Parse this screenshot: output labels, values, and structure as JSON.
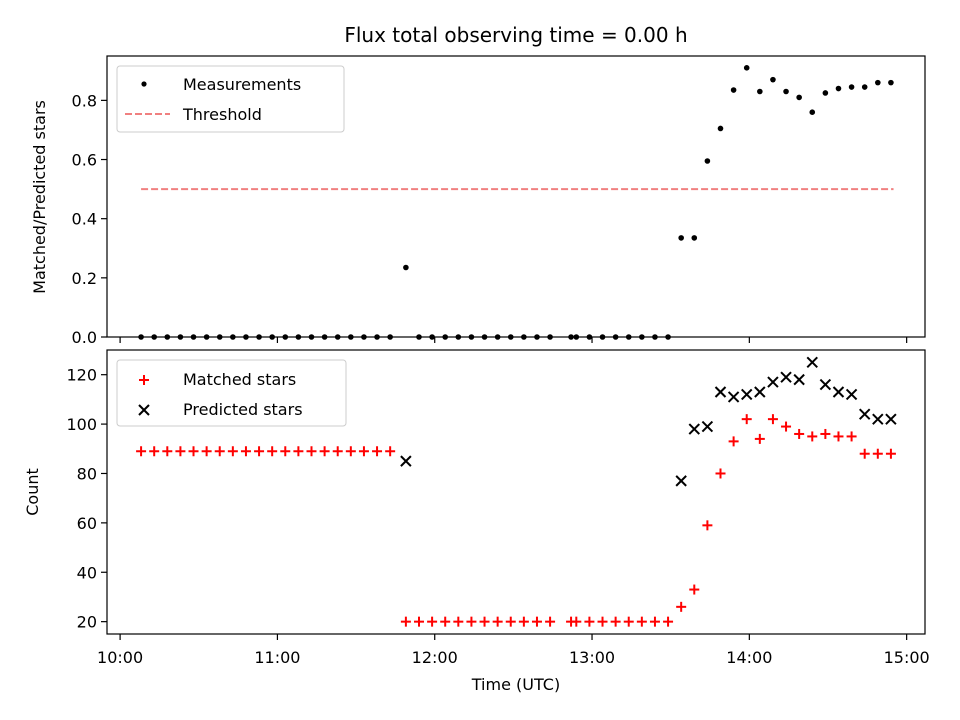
{
  "chart_data": [
    {
      "type": "scatter",
      "title": "Flux total observing time = 0.00 h",
      "xlabel": "",
      "ylabel": "Matched/Predicted stars",
      "ylim": [
        0,
        0.95
      ],
      "yticks": [
        "0.0",
        "0.2",
        "0.4",
        "0.6",
        "0.8"
      ],
      "ytick_values": [
        0,
        0.2,
        0.4,
        0.6,
        0.8
      ],
      "legend_position": "top-left",
      "series": [
        {
          "name": "Measurements",
          "marker": "dot",
          "color": "#000000",
          "points": [
            [
              "10:08",
              0
            ],
            [
              "10:13",
              0
            ],
            [
              "10:18",
              0
            ],
            [
              "10:23",
              0
            ],
            [
              "10:28",
              0
            ],
            [
              "10:33",
              0
            ],
            [
              "10:38",
              0
            ],
            [
              "10:43",
              0
            ],
            [
              "10:48",
              0
            ],
            [
              "10:53",
              0
            ],
            [
              "10:58",
              0
            ],
            [
              "11:03",
              0
            ],
            [
              "11:08",
              0
            ],
            [
              "11:13",
              0
            ],
            [
              "11:18",
              0
            ],
            [
              "11:23",
              0
            ],
            [
              "11:28",
              0
            ],
            [
              "11:33",
              0
            ],
            [
              "11:38",
              0
            ],
            [
              "11:43",
              0
            ],
            [
              "11:49",
              0.235
            ],
            [
              "11:54",
              0
            ],
            [
              "11:59",
              0
            ],
            [
              "12:04",
              0
            ],
            [
              "12:09",
              0
            ],
            [
              "12:14",
              0
            ],
            [
              "12:19",
              0
            ],
            [
              "12:24",
              0
            ],
            [
              "12:29",
              0
            ],
            [
              "12:34",
              0
            ],
            [
              "12:39",
              0
            ],
            [
              "12:44",
              0
            ],
            [
              "12:52",
              0
            ],
            [
              "12:54",
              0
            ],
            [
              "12:59",
              0
            ],
            [
              "13:04",
              0
            ],
            [
              "13:09",
              0
            ],
            [
              "13:14",
              0
            ],
            [
              "13:19",
              0
            ],
            [
              "13:24",
              0
            ],
            [
              "13:29",
              0
            ],
            [
              "13:34",
              0.335
            ],
            [
              "13:39",
              0.335
            ],
            [
              "13:44",
              0.595
            ],
            [
              "13:49",
              0.705
            ],
            [
              "13:54",
              0.835
            ],
            [
              "13:59",
              0.91
            ],
            [
              "14:04",
              0.83
            ],
            [
              "14:09",
              0.87
            ],
            [
              "14:14",
              0.83
            ],
            [
              "14:19",
              0.81
            ],
            [
              "14:24",
              0.76
            ],
            [
              "14:29",
              0.825
            ],
            [
              "14:34",
              0.84
            ],
            [
              "14:39",
              0.845
            ],
            [
              "14:44",
              0.845
            ],
            [
              "14:49",
              0.86
            ],
            [
              "14:54",
              0.86
            ]
          ]
        },
        {
          "name": "Threshold",
          "marker": "dashed-line",
          "color": "#f08080",
          "points": [
            [
              "10:08",
              0.5
            ],
            [
              "14:55",
              0.5
            ]
          ]
        }
      ]
    },
    {
      "type": "scatter",
      "title": "",
      "xlabel": "Time (UTC)",
      "ylabel": "Count",
      "xlim": [
        "09:55",
        "15:07"
      ],
      "ylim": [
        15,
        130
      ],
      "xticks": [
        "10:00",
        "11:00",
        "12:00",
        "13:00",
        "14:00",
        "15:00"
      ],
      "yticks": [
        "20",
        "40",
        "60",
        "80",
        "100",
        "120"
      ],
      "ytick_values": [
        20,
        40,
        60,
        80,
        100,
        120
      ],
      "legend_position": "top-left",
      "series": [
        {
          "name": "Matched stars",
          "marker": "plus",
          "color": "#ff0000",
          "points": [
            [
              "10:08",
              89
            ],
            [
              "10:13",
              89
            ],
            [
              "10:18",
              89
            ],
            [
              "10:23",
              89
            ],
            [
              "10:28",
              89
            ],
            [
              "10:33",
              89
            ],
            [
              "10:38",
              89
            ],
            [
              "10:43",
              89
            ],
            [
              "10:48",
              89
            ],
            [
              "10:53",
              89
            ],
            [
              "10:58",
              89
            ],
            [
              "11:03",
              89
            ],
            [
              "11:08",
              89
            ],
            [
              "11:13",
              89
            ],
            [
              "11:18",
              89
            ],
            [
              "11:23",
              89
            ],
            [
              "11:28",
              89
            ],
            [
              "11:33",
              89
            ],
            [
              "11:38",
              89
            ],
            [
              "11:43",
              89
            ],
            [
              "11:49",
              20
            ],
            [
              "11:54",
              20
            ],
            [
              "11:59",
              20
            ],
            [
              "12:04",
              20
            ],
            [
              "12:09",
              20
            ],
            [
              "12:14",
              20
            ],
            [
              "12:19",
              20
            ],
            [
              "12:24",
              20
            ],
            [
              "12:29",
              20
            ],
            [
              "12:34",
              20
            ],
            [
              "12:39",
              20
            ],
            [
              "12:44",
              20
            ],
            [
              "12:52",
              20
            ],
            [
              "12:54",
              20
            ],
            [
              "12:59",
              20
            ],
            [
              "13:04",
              20
            ],
            [
              "13:09",
              20
            ],
            [
              "13:14",
              20
            ],
            [
              "13:19",
              20
            ],
            [
              "13:24",
              20
            ],
            [
              "13:29",
              20
            ],
            [
              "13:34",
              26
            ],
            [
              "13:39",
              33
            ],
            [
              "13:44",
              59
            ],
            [
              "13:49",
              80
            ],
            [
              "13:54",
              93
            ],
            [
              "13:59",
              102
            ],
            [
              "14:04",
              94
            ],
            [
              "14:09",
              102
            ],
            [
              "14:14",
              99
            ],
            [
              "14:19",
              96
            ],
            [
              "14:24",
              95
            ],
            [
              "14:29",
              96
            ],
            [
              "14:34",
              95
            ],
            [
              "14:39",
              95
            ],
            [
              "14:44",
              88
            ],
            [
              "14:49",
              88
            ],
            [
              "14:54",
              88
            ]
          ]
        },
        {
          "name": "Predicted stars",
          "marker": "x",
          "color": "#000000",
          "points": [
            [
              "11:49",
              85
            ],
            [
              "13:34",
              77
            ],
            [
              "13:39",
              98
            ],
            [
              "13:44",
              99
            ],
            [
              "13:49",
              113
            ],
            [
              "13:54",
              111
            ],
            [
              "13:59",
              112
            ],
            [
              "14:04",
              113
            ],
            [
              "14:09",
              117
            ],
            [
              "14:14",
              119
            ],
            [
              "14:19",
              118
            ],
            [
              "14:24",
              125
            ],
            [
              "14:29",
              116
            ],
            [
              "14:34",
              113
            ],
            [
              "14:39",
              112
            ],
            [
              "14:44",
              104
            ],
            [
              "14:49",
              102
            ],
            [
              "14:54",
              102
            ]
          ]
        }
      ]
    }
  ]
}
